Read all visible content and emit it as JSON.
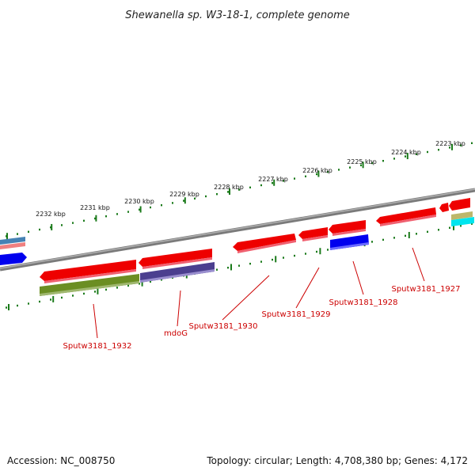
{
  "title": "Shewanella sp. W3-18-1, complete genome",
  "footer": {
    "accession": "Accession: NC_008750",
    "topology": "Topology: circular; Length: 4,708,380 bp; Genes: 4,172"
  },
  "scale_labels": [
    "2223 kbp",
    "2224 kbp",
    "2225 kbp",
    "2226 kbp",
    "2227 kbp",
    "2228 kbp",
    "2229 kbp",
    "2230 kbp",
    "2231 kbp",
    "2232 kbp"
  ],
  "gene_labels": [
    "Sputw3181_1927",
    "Sputw3181_1928",
    "Sputw3181_1929",
    "Sputw3181_1930",
    "mdoG",
    "Sputw3181_1932"
  ],
  "colors": {
    "backbone": "#808080",
    "tick": "#1a7a1a",
    "gene_red": "#ee0000",
    "gene_blue": "#0000ee",
    "gene_olive": "#6b8e23",
    "gene_purple": "#4b3f8f",
    "gene_cyan": "#00e5ee",
    "label_red": "#cc0000"
  }
}
